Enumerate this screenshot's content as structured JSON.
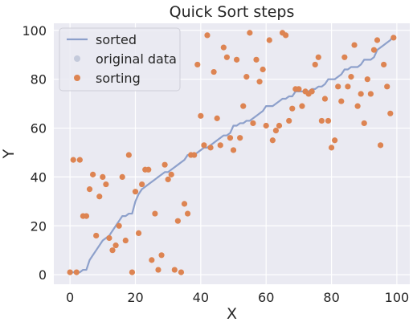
{
  "chart_data": {
    "type": "scatter",
    "title": "Quick Sort steps",
    "xlabel": "X",
    "ylabel": "Y",
    "xlim": [
      -4.95,
      103.95
    ],
    "ylim": [
      -3.9,
      102.9
    ],
    "xticks": [
      0,
      20,
      40,
      60,
      80,
      100
    ],
    "yticks": [
      0,
      20,
      40,
      60,
      80,
      100
    ],
    "grid": true,
    "background": "#eaeaf2",
    "legend_position": "top-left",
    "series": [
      {
        "name": "sorted",
        "kind": "line",
        "color": "#8da0cb",
        "x": [
          0,
          1,
          2,
          3,
          4,
          5,
          6,
          7,
          8,
          9,
          10,
          11,
          12,
          13,
          14,
          15,
          16,
          17,
          18,
          19,
          20,
          21,
          22,
          23,
          24,
          25,
          26,
          27,
          28,
          29,
          30,
          31,
          32,
          33,
          34,
          35,
          36,
          37,
          38,
          39,
          40,
          41,
          42,
          43,
          44,
          45,
          46,
          47,
          48,
          49,
          50,
          51,
          52,
          53,
          54,
          55,
          56,
          57,
          58,
          59,
          60,
          61,
          62,
          63,
          64,
          65,
          66,
          67,
          68,
          69,
          70,
          71,
          72,
          73,
          74,
          75,
          76,
          77,
          78,
          79,
          80,
          81,
          82,
          83,
          84,
          85,
          86,
          87,
          88,
          89,
          90,
          91,
          92,
          93,
          94,
          95,
          96,
          97,
          98,
          99
        ],
        "y": [
          1,
          1,
          1,
          1,
          2,
          2,
          6,
          8,
          10,
          12,
          14,
          15,
          16,
          18,
          20,
          22,
          24,
          24,
          25,
          25,
          30,
          33,
          35,
          36,
          37,
          38,
          39,
          40,
          41,
          42,
          42,
          43,
          44,
          45,
          46,
          47,
          49,
          49,
          49,
          50,
          51,
          52,
          52,
          53,
          54,
          55,
          56,
          57,
          57,
          58,
          61,
          61,
          62,
          62,
          63,
          63,
          64,
          65,
          66,
          67,
          69,
          69,
          69,
          70,
          71,
          72,
          72,
          73,
          73,
          75,
          75,
          75,
          75,
          75,
          76,
          76,
          77,
          77,
          78,
          80,
          80,
          80,
          81,
          82,
          84,
          84,
          85,
          85,
          85,
          86,
          88,
          88,
          88,
          89,
          92,
          93,
          94,
          95,
          96,
          98
        ]
      },
      {
        "name": "original data",
        "kind": "scatter",
        "color": "#c4cadb",
        "x": [],
        "y": []
      },
      {
        "name": "sorting",
        "kind": "scatter",
        "color": "#dd8452",
        "x": [
          0,
          1,
          2,
          3,
          4,
          5,
          6,
          7,
          8,
          9,
          10,
          11,
          12,
          13,
          14,
          15,
          16,
          17,
          18,
          19,
          20,
          21,
          22,
          23,
          24,
          25,
          26,
          27,
          28,
          29,
          30,
          31,
          32,
          33,
          34,
          35,
          36,
          37,
          38,
          39,
          40,
          41,
          42,
          43,
          44,
          45,
          46,
          47,
          48,
          49,
          50,
          51,
          52,
          53,
          54,
          55,
          56,
          57,
          58,
          59,
          60,
          61,
          62,
          63,
          64,
          65,
          66,
          67,
          68,
          69,
          70,
          71,
          72,
          73,
          74,
          75,
          76,
          77,
          78,
          79,
          80,
          81,
          82,
          83,
          84,
          85,
          86,
          87,
          88,
          89,
          90,
          91,
          92,
          93,
          94,
          95,
          96,
          97,
          98,
          99
        ],
        "y": [
          1,
          47,
          1,
          47,
          24,
          24,
          35,
          41,
          16,
          32,
          40,
          37,
          15,
          10,
          12,
          20,
          40,
          14,
          49,
          1,
          34,
          17,
          37,
          43,
          43,
          6,
          25,
          2,
          8,
          45,
          39,
          41,
          2,
          22,
          1,
          29,
          25,
          49,
          49,
          86,
          65,
          53,
          98,
          52,
          83,
          64,
          53,
          93,
          89,
          56,
          51,
          88,
          56,
          69,
          81,
          99,
          62,
          88,
          79,
          84,
          61,
          96,
          55,
          59,
          61,
          99,
          98,
          63,
          68,
          76,
          76,
          69,
          75,
          74,
          75,
          86,
          89,
          63,
          72,
          63,
          52,
          55,
          77,
          71,
          89,
          77,
          81,
          94,
          69,
          74,
          62,
          80,
          74,
          92,
          96,
          53,
          86,
          77,
          66,
          97
        ]
      }
    ]
  }
}
